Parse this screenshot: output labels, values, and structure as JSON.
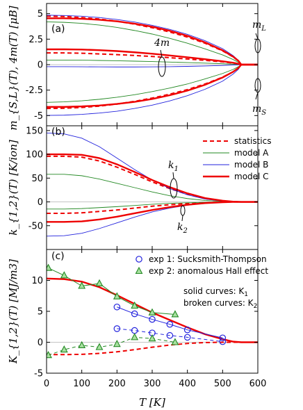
{
  "chart_data": [
    {
      "type": "line",
      "panel_label": "(a)",
      "ylabel": "m_{S,L}(T), 4m(T) [μB]",
      "xlim": [
        0,
        600
      ],
      "ylim": [
        -6,
        6
      ],
      "yticks": [
        5,
        2.5,
        0,
        -2.5,
        -5
      ],
      "ytick_labels": [
        "5",
        "2.5",
        "0",
        "-2.5",
        "-5"
      ],
      "annotations": {
        "mL": "m",
        "mL_sub": "L",
        "mS": "m",
        "mS_sub": "S",
        "four_m": "4m"
      },
      "x": [
        0,
        50,
        100,
        150,
        200,
        250,
        300,
        350,
        400,
        450,
        500,
        530,
        545,
        553,
        600
      ],
      "series": [
        {
          "name": "statistics",
          "color": "#ee0000",
          "style": "dashed",
          "values": [
            4.75,
            4.72,
            4.62,
            4.47,
            4.26,
            3.97,
            3.62,
            3.2,
            2.7,
            2.1,
            1.35,
            0.75,
            0.35,
            0,
            0
          ]
        },
        {
          "name": "statistics",
          "color": "#ee0000",
          "style": "dashed",
          "values": [
            1.15,
            1.15,
            1.12,
            1.05,
            0.98,
            0.9,
            0.8,
            0.68,
            0.55,
            0.42,
            0.27,
            0.15,
            0.07,
            0,
            0
          ]
        },
        {
          "name": "statistics",
          "color": "#ee0000",
          "style": "dashed",
          "values": [
            -4.3,
            -4.28,
            -4.2,
            -4.07,
            -3.87,
            -3.6,
            -3.28,
            -2.9,
            -2.45,
            -1.9,
            -1.23,
            -0.7,
            -0.33,
            0,
            0
          ]
        },
        {
          "name": "model A",
          "color": "#228822",
          "style": "solid",
          "values": [
            4.2,
            4.15,
            4.05,
            3.88,
            3.65,
            3.35,
            3.0,
            2.58,
            2.1,
            1.55,
            0.95,
            0.5,
            0.22,
            0,
            0
          ]
        },
        {
          "name": "model A",
          "color": "#228822",
          "style": "solid",
          "values": [
            0.45,
            0.45,
            0.44,
            0.41,
            0.38,
            0.34,
            0.3,
            0.25,
            0.2,
            0.15,
            0.09,
            0.05,
            0.02,
            0,
            0
          ]
        },
        {
          "name": "model A",
          "color": "#228822",
          "style": "solid",
          "values": [
            -3.7,
            -3.65,
            -3.55,
            -3.4,
            -3.2,
            -2.95,
            -2.65,
            -2.3,
            -1.9,
            -1.4,
            -0.87,
            -0.47,
            -0.2,
            0,
            0
          ]
        },
        {
          "name": "model B",
          "color": "#2222dd",
          "style": "solid",
          "values": [
            4.85,
            4.82,
            4.75,
            4.62,
            4.43,
            4.18,
            3.86,
            3.46,
            2.97,
            2.35,
            1.57,
            0.88,
            0.42,
            0,
            0
          ]
        },
        {
          "name": "model B",
          "color": "#2222dd",
          "style": "solid",
          "values": [
            -0.2,
            -0.2,
            -0.21,
            -0.22,
            -0.23,
            -0.23,
            -0.22,
            -0.2,
            -0.17,
            -0.13,
            -0.08,
            -0.04,
            -0.02,
            0,
            0
          ]
        },
        {
          "name": "model B",
          "color": "#2222dd",
          "style": "solid",
          "values": [
            -4.98,
            -4.96,
            -4.88,
            -4.75,
            -4.57,
            -4.3,
            -3.98,
            -3.56,
            -3.05,
            -2.42,
            -1.62,
            -0.92,
            -0.45,
            0,
            0
          ]
        },
        {
          "name": "model C",
          "color": "#ee0000",
          "style": "solid",
          "values": [
            4.55,
            4.55,
            4.5,
            4.4,
            4.25,
            4.02,
            3.72,
            3.32,
            2.82,
            2.18,
            1.4,
            0.78,
            0.37,
            0,
            0
          ]
        },
        {
          "name": "model C",
          "color": "#ee0000",
          "style": "solid",
          "values": [
            1.5,
            1.5,
            1.48,
            1.42,
            1.33,
            1.21,
            1.07,
            0.9,
            0.72,
            0.53,
            0.33,
            0.18,
            0.08,
            0,
            0
          ]
        },
        {
          "name": "model C",
          "color": "#ee0000",
          "style": "solid",
          "values": [
            -4.15,
            -4.15,
            -4.1,
            -4.01,
            -3.86,
            -3.65,
            -3.37,
            -3.0,
            -2.55,
            -1.98,
            -1.26,
            -0.7,
            -0.33,
            0,
            0
          ]
        }
      ]
    },
    {
      "type": "line",
      "panel_label": "(b)",
      "ylabel": "k_{1,2}(T) [K/ion]",
      "xlim": [
        0,
        600
      ],
      "ylim": [
        -100,
        160
      ],
      "yticks": [
        150,
        100,
        50,
        0,
        -50
      ],
      "ytick_labels": [
        "150",
        "100",
        "50",
        "0",
        "-50"
      ],
      "annotations": {
        "k1": "k",
        "k1_sub": "1",
        "k2": "k",
        "k2_sub": "2"
      },
      "legend": [
        "statistics",
        "model A",
        "model B",
        "model C"
      ],
      "x": [
        0,
        50,
        100,
        150,
        200,
        250,
        300,
        350,
        400,
        450,
        500,
        530,
        553,
        600
      ],
      "series": [
        {
          "name": "statistics",
          "color": "#ee0000",
          "style": "dashed",
          "values": [
            96,
            96,
            94,
            86,
            73,
            58,
            42,
            28,
            16,
            7,
            2,
            0.5,
            0,
            0
          ]
        },
        {
          "name": "statistics",
          "color": "#ee0000",
          "style": "dashed",
          "values": [
            -24,
            -24,
            -23,
            -20,
            -17,
            -13,
            -9,
            -6,
            -3.5,
            -1.5,
            -0.5,
            -0.1,
            0,
            0
          ]
        },
        {
          "name": "model A",
          "color": "#228822",
          "style": "solid",
          "values": [
            58,
            58,
            55,
            48,
            39,
            30,
            21,
            13,
            7,
            3,
            1,
            0.2,
            0,
            0
          ]
        },
        {
          "name": "model A",
          "color": "#228822",
          "style": "solid",
          "values": [
            -15,
            -15,
            -14,
            -12,
            -10,
            -7.5,
            -5,
            -3,
            -1.8,
            -0.8,
            -0.2,
            0,
            0,
            0
          ]
        },
        {
          "name": "model B",
          "color": "#2222dd",
          "style": "solid",
          "values": [
            145,
            143,
            134,
            116,
            92,
            68,
            46,
            28,
            15,
            6,
            1.5,
            0.3,
            0,
            0
          ]
        },
        {
          "name": "model B",
          "color": "#2222dd",
          "style": "solid",
          "values": [
            -72,
            -71,
            -66,
            -56,
            -44,
            -32,
            -21,
            -13,
            -7,
            -3,
            -0.8,
            -0.1,
            0,
            0
          ]
        },
        {
          "name": "model C",
          "color": "#ee0000",
          "style": "solid",
          "values": [
            100,
            100,
            99,
            92,
            79,
            63,
            46,
            31,
            18,
            8,
            2.5,
            0.5,
            0,
            0
          ]
        },
        {
          "name": "model C",
          "color": "#ee0000",
          "style": "solid",
          "values": [
            -42,
            -42,
            -41,
            -37,
            -31,
            -24,
            -17,
            -11,
            -6,
            -2.5,
            -0.7,
            -0.1,
            0,
            0
          ]
        }
      ]
    },
    {
      "type": "line",
      "panel_label": "(c)",
      "ylabel": "K_{1,2}(T) [MJ/m3]",
      "xlabel": "T [K]",
      "xlim": [
        0,
        600
      ],
      "ylim": [
        -5,
        15
      ],
      "xticks": [
        0,
        100,
        200,
        300,
        400,
        500,
        600
      ],
      "xtick_labels": [
        "0",
        "100",
        "200",
        "300",
        "400",
        "500",
        "600"
      ],
      "yticks": [
        10,
        5,
        0,
        -5
      ],
      "ytick_labels": [
        "10",
        "5",
        "0",
        "-5"
      ],
      "legend": [
        "exp 1: Sucksmith-Thompson",
        "exp 2: anomalous Hall effect"
      ],
      "notes": [
        "solid curves: K",
        "1",
        "broken curves: K",
        "2"
      ],
      "model_x": [
        0,
        50,
        100,
        150,
        200,
        250,
        300,
        350,
        400,
        450,
        500,
        530,
        553,
        600
      ],
      "series": [
        {
          "name": "model C",
          "color": "#ee0000",
          "style": "solid",
          "values": [
            10.3,
            10.2,
            9.8,
            8.9,
            7.6,
            6.2,
            4.8,
            3.6,
            2.4,
            1.3,
            0.5,
            0.1,
            0,
            0
          ]
        },
        {
          "name": "statistics",
          "color": "#ee0000",
          "style": "dashed",
          "values": [
            -2.0,
            -2.0,
            -1.95,
            -1.8,
            -1.55,
            -1.2,
            -0.8,
            -0.45,
            -0.2,
            -0.05,
            0,
            0,
            0,
            0
          ]
        }
      ],
      "exp1": {
        "name": "exp 1: Sucksmith-Thompson",
        "color": "#2222dd",
        "K1": {
          "x": [
            200,
            250,
            300,
            350,
            400,
            500
          ],
          "y": [
            5.7,
            4.6,
            3.7,
            2.9,
            2.0,
            0.7
          ]
        },
        "K2": {
          "x": [
            200,
            250,
            300,
            350,
            400,
            500
          ],
          "y": [
            2.2,
            1.9,
            1.5,
            1.1,
            0.8,
            0.1
          ]
        }
      },
      "exp2": {
        "name": "exp 2: anomalous Hall effect",
        "color": "#228822",
        "K1": {
          "x": [
            5,
            50,
            100,
            150,
            200,
            250,
            300,
            365
          ],
          "y": [
            12.0,
            10.8,
            9.1,
            9.5,
            7.4,
            5.9,
            4.8,
            4.5
          ]
        },
        "K2": {
          "x": [
            5,
            50,
            100,
            150,
            200,
            250,
            300,
            365
          ],
          "y": [
            -2.1,
            -1.2,
            -0.5,
            -0.8,
            -0.3,
            0.8,
            0.6,
            0.0
          ]
        }
      }
    }
  ]
}
